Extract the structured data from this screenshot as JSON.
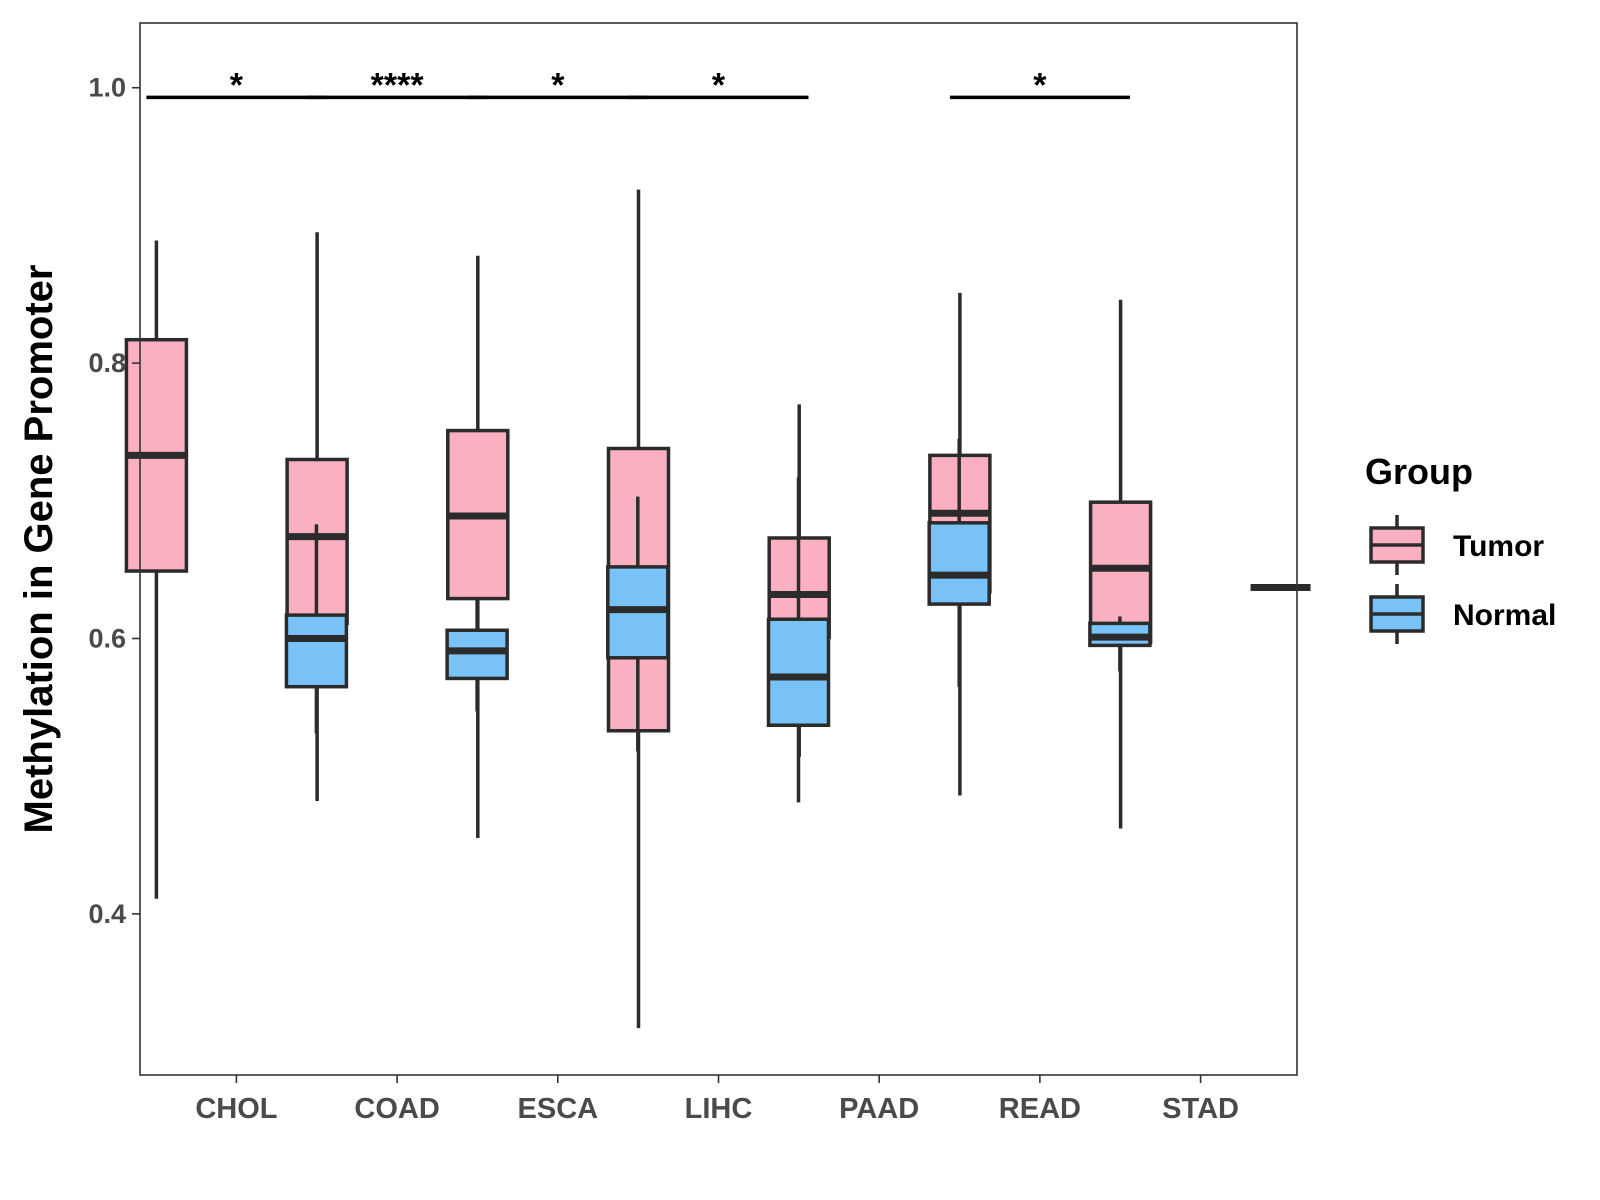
{
  "chart_data": {
    "type": "box",
    "title": "",
    "xlabel": "",
    "ylabel": "Methylation in Gene Promoter",
    "ylim": [
      0.283,
      1.047
    ],
    "yticks": [
      "0.4",
      "0.6",
      "0.8",
      "1.0"
    ],
    "categories": [
      "CHOL",
      "COAD",
      "ESCA",
      "LIHC",
      "PAAD",
      "READ",
      "STAD"
    ],
    "legend": {
      "title": "Group",
      "position": "right",
      "entries": [
        {
          "name": "Tumor",
          "color": "#FBB0C2"
        },
        {
          "name": "Normal",
          "color": "#79C2F7"
        }
      ]
    },
    "series": [
      {
        "name": "Tumor",
        "color": "#FBB0C2",
        "boxes": [
          {
            "category": "CHOL",
            "min": 0.411,
            "q1": 0.649,
            "median": 0.733,
            "q3": 0.817,
            "max": 0.889
          },
          {
            "category": "COAD",
            "min": 0.482,
            "q1": 0.611,
            "median": 0.674,
            "q3": 0.73,
            "max": 0.895
          },
          {
            "category": "ESCA",
            "min": 0.455,
            "q1": 0.629,
            "median": 0.689,
            "q3": 0.751,
            "max": 0.878
          },
          {
            "category": "LIHC",
            "min": 0.317,
            "q1": 0.533,
            "median": 0.624,
            "q3": 0.738,
            "max": 0.926
          },
          {
            "category": "PAAD",
            "min": 0.514,
            "q1": 0.601,
            "median": 0.632,
            "q3": 0.673,
            "max": 0.77
          },
          {
            "category": "READ",
            "min": 0.486,
            "q1": 0.634,
            "median": 0.691,
            "q3": 0.733,
            "max": 0.851
          },
          {
            "category": "STAD",
            "min": 0.462,
            "q1": 0.597,
            "median": 0.651,
            "q3": 0.699,
            "max": 0.846
          }
        ]
      },
      {
        "name": "Normal",
        "color": "#79C2F7",
        "boxes": [
          {
            "category": "CHOL",
            "min": 0.531,
            "q1": 0.565,
            "median": 0.6,
            "q3": 0.617,
            "max": 0.683
          },
          {
            "category": "COAD",
            "min": 0.547,
            "q1": 0.571,
            "median": 0.591,
            "q3": 0.606,
            "max": 0.628
          },
          {
            "category": "ESCA",
            "min": 0.518,
            "q1": 0.586,
            "median": 0.621,
            "q3": 0.652,
            "max": 0.703
          },
          {
            "category": "LIHC",
            "min": 0.481,
            "q1": 0.537,
            "median": 0.572,
            "q3": 0.614,
            "max": 0.717
          },
          {
            "category": "PAAD",
            "min": 0.565,
            "q1": 0.625,
            "median": 0.646,
            "q3": 0.684,
            "max": 0.745
          },
          {
            "category": "READ",
            "min": 0.576,
            "q1": 0.595,
            "median": 0.601,
            "q3": 0.611,
            "max": 0.616
          },
          {
            "category": "STAD",
            "min": 0.637,
            "q1": 0.637,
            "median": 0.637,
            "q3": 0.637,
            "max": 0.637
          }
        ]
      }
    ],
    "significance": [
      {
        "category": "CHOL",
        "label": "*",
        "y": 0.993
      },
      {
        "category": "COAD",
        "label": "****",
        "y": 0.993
      },
      {
        "category": "ESCA",
        "label": "*",
        "y": 0.993
      },
      {
        "category": "LIHC",
        "label": "*",
        "y": 0.993
      },
      {
        "category": "READ",
        "label": "*",
        "y": 0.993
      }
    ]
  }
}
